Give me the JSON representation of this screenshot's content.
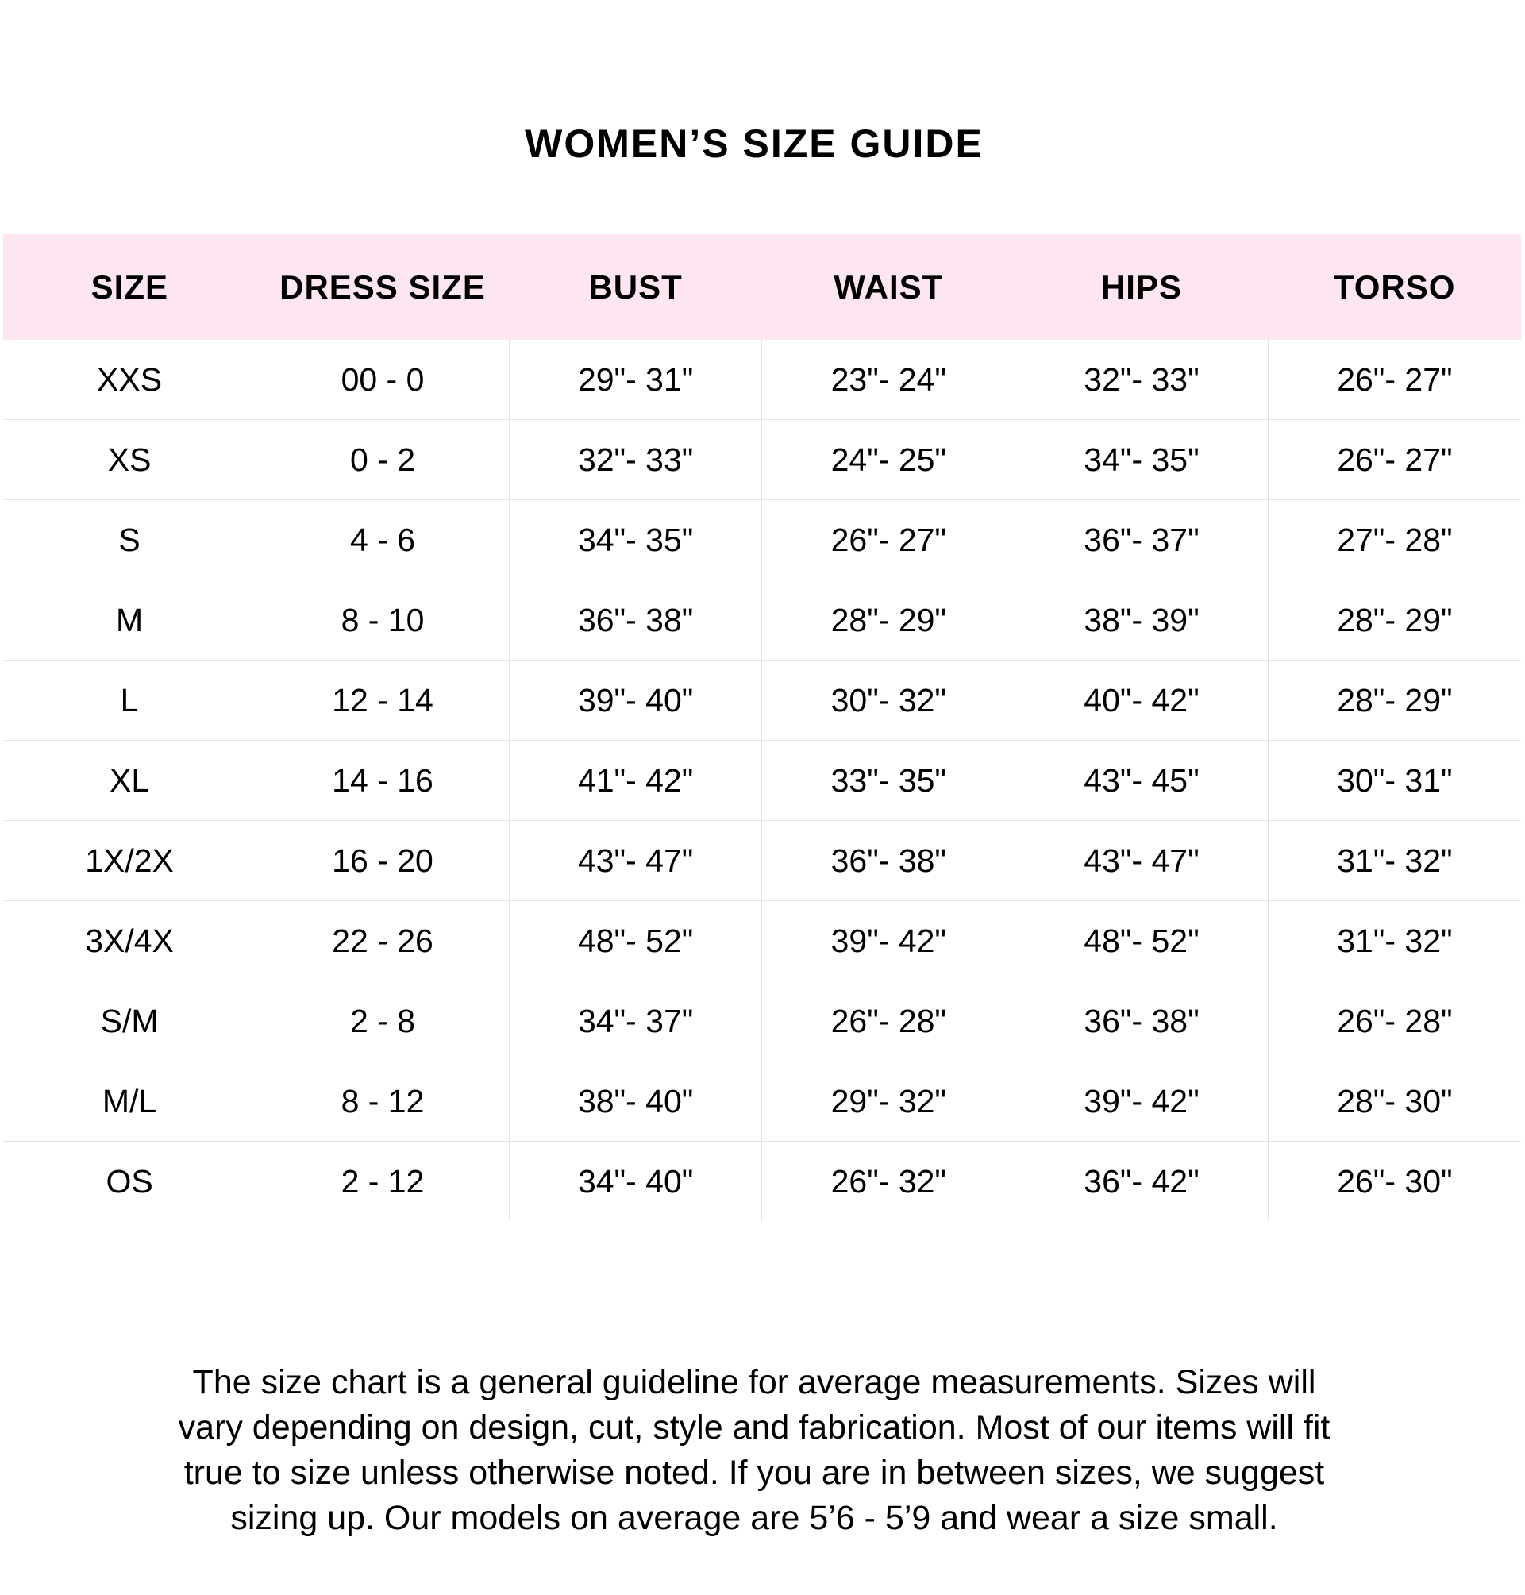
{
  "title": "WOMEN’S SIZE GUIDE",
  "colors": {
    "header_background": "#fde6f1",
    "divider": "#e2e2e2"
  },
  "table": {
    "headers": [
      "SIZE",
      "DRESS SIZE",
      "BUST",
      "WAIST",
      "HIPS",
      "TORSO"
    ],
    "rows": [
      [
        "XXS",
        "00 - 0",
        "29\"- 31\"",
        "23\"- 24\"",
        "32\"- 33\"",
        "26\"- 27\""
      ],
      [
        "XS",
        "0 - 2",
        "32\"- 33\"",
        "24\"- 25\"",
        "34\"- 35\"",
        "26\"- 27\""
      ],
      [
        "S",
        "4 - 6",
        "34\"- 35\"",
        "26\"- 27\"",
        "36\"- 37\"",
        "27\"- 28\""
      ],
      [
        "M",
        "8 - 10",
        "36\"- 38\"",
        "28\"- 29\"",
        "38\"- 39\"",
        "28\"- 29\""
      ],
      [
        "L",
        "12 - 14",
        "39\"- 40\"",
        "30\"- 32\"",
        "40\"- 42\"",
        "28\"- 29\""
      ],
      [
        "XL",
        "14 - 16",
        "41\"- 42\"",
        "33\"- 35\"",
        "43\"- 45\"",
        "30\"- 31\""
      ],
      [
        "1X/2X",
        "16 - 20",
        "43\"- 47\"",
        "36\"- 38\"",
        "43\"- 47\"",
        "31\"- 32\""
      ],
      [
        "3X/4X",
        "22 - 26",
        "48\"- 52\"",
        "39\"- 42\"",
        "48\"- 52\"",
        "31\"- 32\""
      ],
      [
        "S/M",
        "2 - 8",
        "34\"- 37\"",
        "26\"- 28\"",
        "36\"- 38\"",
        "26\"- 28\""
      ],
      [
        "M/L",
        "8 - 12",
        "38\"- 40\"",
        "29\"- 32\"",
        "39\"- 42\"",
        "28\"- 30\""
      ],
      [
        "OS",
        "2 - 12",
        "34\"- 40\"",
        "26\"- 32\"",
        "36\"- 42\"",
        "26\"- 30\""
      ]
    ]
  },
  "note": "The size chart is a general guideline for average measurements. Sizes will vary depending on design, cut, style and fabrication. Most of our items will fit true to size unless otherwise noted. If you are in between sizes, we suggest sizing up. Our models on average are 5’6 - 5’9 and wear a size small."
}
